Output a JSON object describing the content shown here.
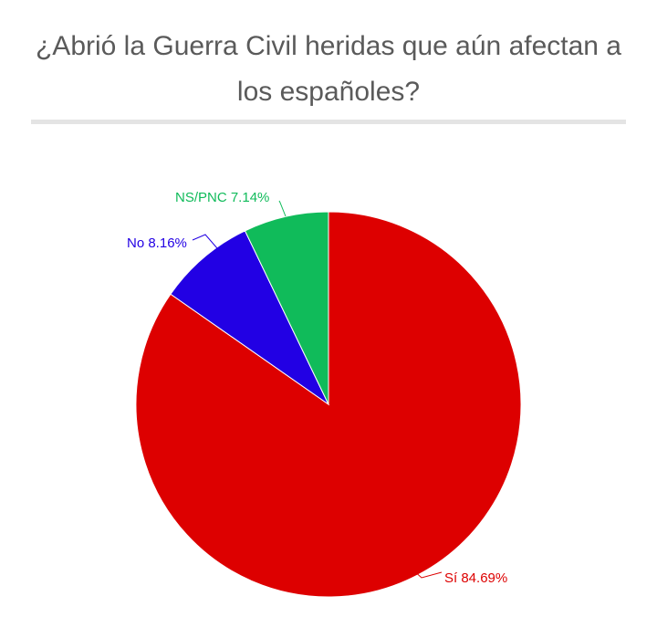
{
  "title": "¿Abrió la Guerra Civil heridas que aún afectan a los españoles?",
  "chart_data": {
    "type": "pie",
    "slices": [
      {
        "label": "Sí",
        "value": 84.69,
        "display": "Sí 84.69%",
        "color": "#dd0000"
      },
      {
        "label": "No",
        "value": 8.16,
        "display": "No 8.16%",
        "color": "#2200e4"
      },
      {
        "label": "NS/PNC",
        "value": 7.14,
        "display": "NS/PNC 7.14%",
        "color": "#10bb5a"
      }
    ]
  }
}
